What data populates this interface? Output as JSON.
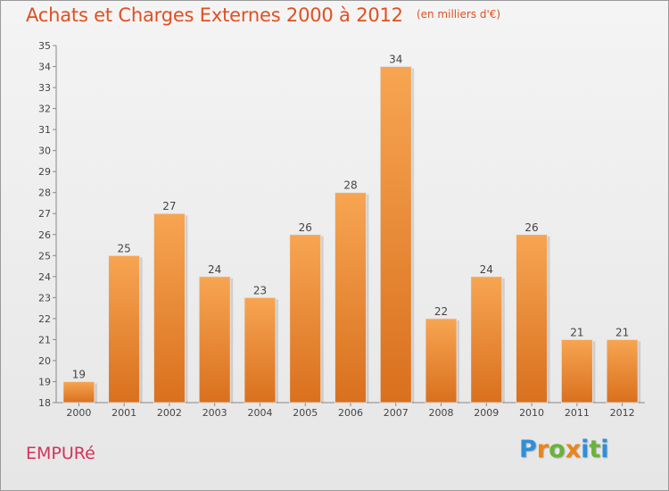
{
  "header": {
    "title": "Achats et Charges Externes 2000 à 2012",
    "subtitle": "(en milliers d'€)"
  },
  "footer": {
    "city": "EMPURé",
    "brand": "Proxiti"
  },
  "colors": {
    "title": "#e05020",
    "city": "#d2335a",
    "bar_top": "#f7a552",
    "bar_bottom": "#d9701e",
    "brand_letters": [
      "#2f8fd8",
      "#e8861c",
      "#6ab23c",
      "#e8861c",
      "#2f8fd8",
      "#6ab23c",
      "#2f8fd8"
    ]
  },
  "chart_data": {
    "type": "bar",
    "categories": [
      "2000",
      "2001",
      "2002",
      "2003",
      "2004",
      "2005",
      "2006",
      "2007",
      "2008",
      "2009",
      "2010",
      "2011",
      "2012"
    ],
    "values": [
      19,
      25,
      27,
      24,
      23,
      26,
      28,
      34,
      22,
      24,
      26,
      21,
      21
    ],
    "ylim": [
      18,
      35
    ],
    "yticks": [
      "18",
      "19",
      "20",
      "21",
      "22",
      "23",
      "24",
      "25",
      "26",
      "27",
      "28",
      "29",
      "30",
      "31",
      "32",
      "33",
      "34",
      "35"
    ],
    "grid": false,
    "legend": "none"
  }
}
